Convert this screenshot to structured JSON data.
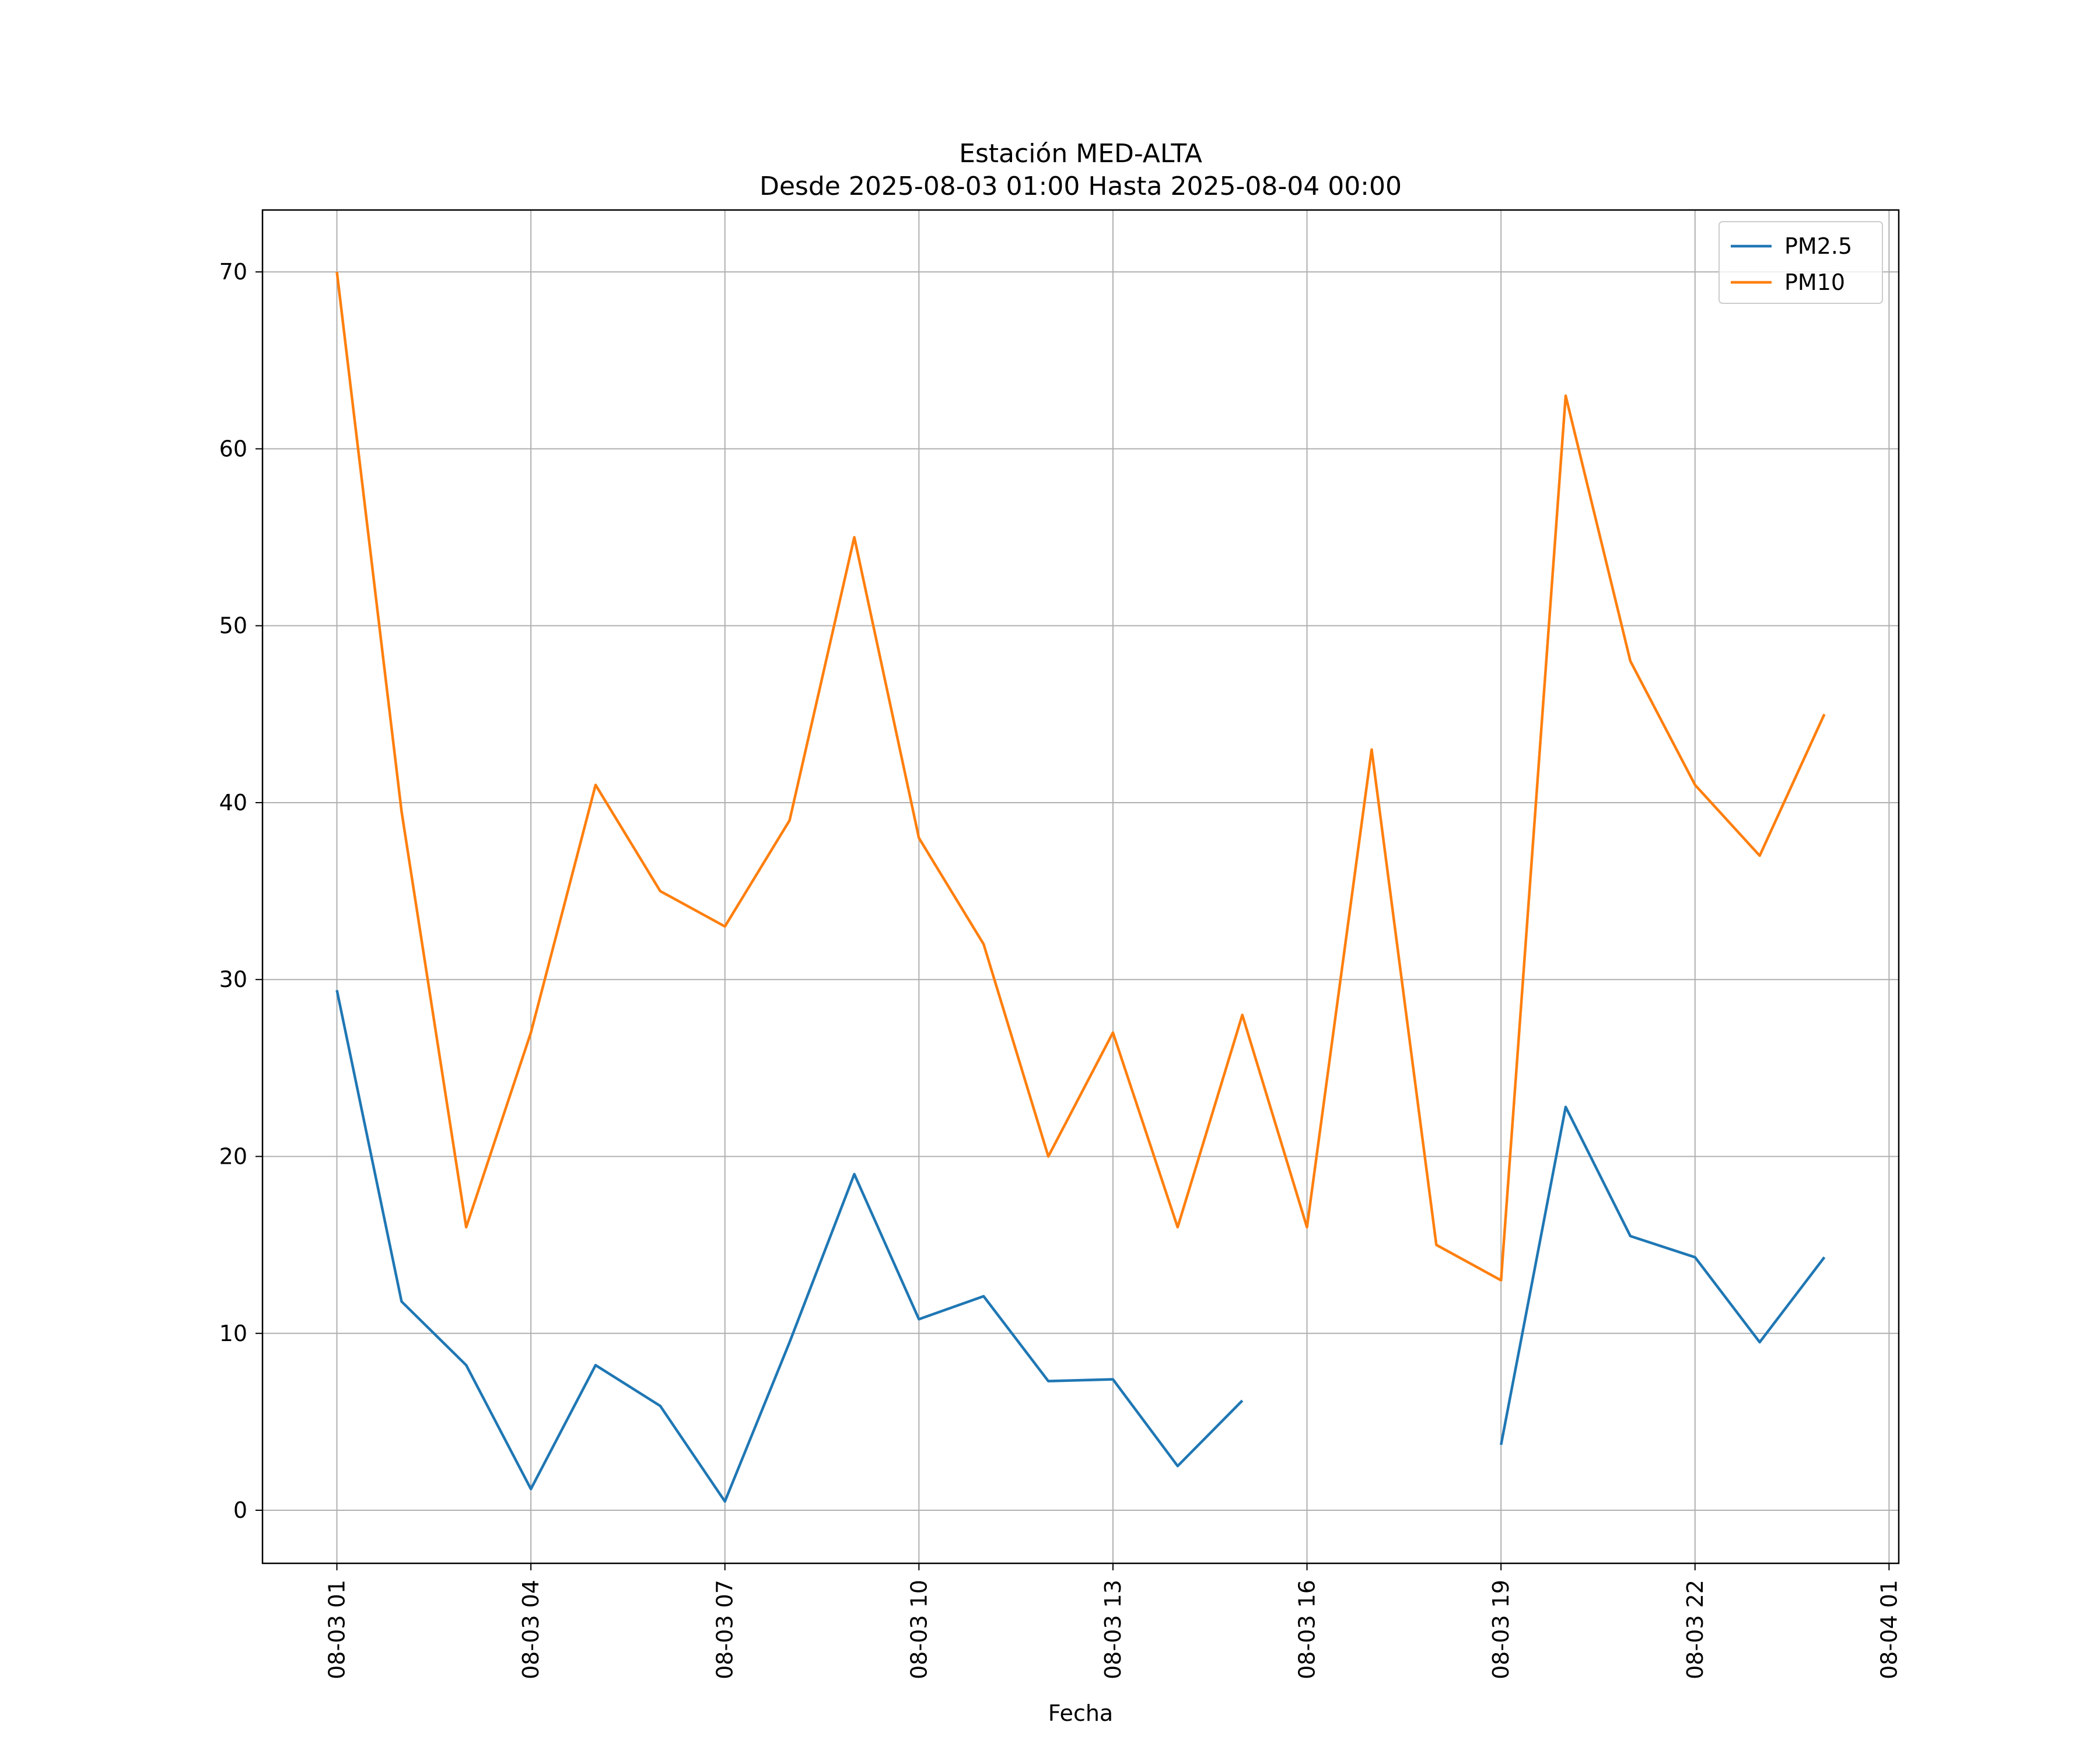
{
  "chart_data": {
    "type": "line",
    "title": "Estación MED-ALTA",
    "subtitle": "Desde 2025-08-03 01:00 Hasta 2025-08-04 00:00",
    "xlabel": "Fecha",
    "ylabel": "",
    "x": [
      "2025-08-03 01:00",
      "2025-08-03 02:00",
      "2025-08-03 03:00",
      "2025-08-03 04:00",
      "2025-08-03 05:00",
      "2025-08-03 06:00",
      "2025-08-03 07:00",
      "2025-08-03 08:00",
      "2025-08-03 09:00",
      "2025-08-03 10:00",
      "2025-08-03 11:00",
      "2025-08-03 12:00",
      "2025-08-03 13:00",
      "2025-08-03 14:00",
      "2025-08-03 15:00",
      "2025-08-03 16:00",
      "2025-08-03 17:00",
      "2025-08-03 18:00",
      "2025-08-03 19:00",
      "2025-08-03 20:00",
      "2025-08-03 21:00",
      "2025-08-03 22:00",
      "2025-08-03 23:00",
      "2025-08-04 00:00"
    ],
    "series": [
      {
        "name": "PM2.5",
        "color": "#1f77b4",
        "values": [
          29.4,
          11.8,
          8.2,
          1.2,
          8.2,
          5.9,
          0.5,
          9.5,
          19.0,
          10.8,
          12.1,
          7.3,
          7.4,
          2.5,
          6.2,
          null,
          null,
          null,
          3.7,
          22.8,
          15.5,
          14.3,
          9.5,
          14.3
        ]
      },
      {
        "name": "PM10",
        "color": "#ff7f0e",
        "values": [
          70,
          39.5,
          16,
          27,
          41,
          35,
          33,
          39,
          55,
          38,
          32,
          20,
          27,
          16,
          28,
          16,
          43,
          15,
          13,
          63,
          48,
          41,
          37,
          45
        ]
      }
    ],
    "xticks": [
      "08-03 01",
      "08-03 04",
      "08-03 07",
      "08-03 10",
      "08-03 13",
      "08-03 16",
      "08-03 19",
      "08-03 22",
      "08-04 01"
    ],
    "xlim": [
      "2025-08-02 23:51",
      "2025-08-04 01:09"
    ],
    "ylim": [
      -3,
      73.5
    ],
    "yticks": [
      0,
      10,
      20,
      30,
      40,
      50,
      60,
      70
    ],
    "grid": true,
    "legend": "top-right"
  }
}
